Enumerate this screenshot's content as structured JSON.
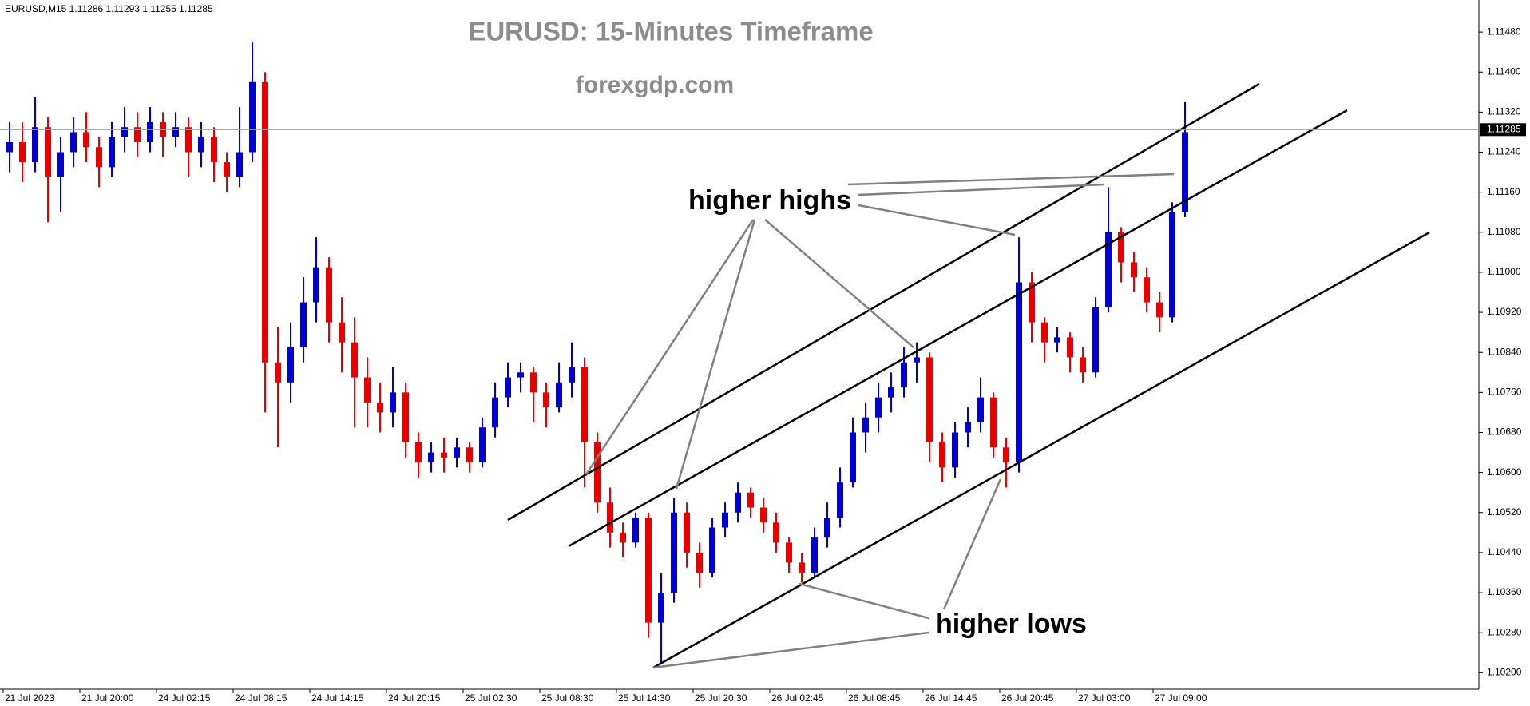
{
  "chart_data": {
    "type": "candlestick",
    "title": "EURUSD: 15-Minutes Timeframe",
    "subtitle": "forexgdp.com",
    "header": "EURUSD,M15  1.11286 1.11293 1.11255 1.11285",
    "annotations": [
      "higher highs",
      "higher lows"
    ],
    "up_color": "#0000cc",
    "down_color": "#e60000",
    "current_price": {
      "value": 1.11285,
      "label": "1.11285"
    },
    "ylim": [
      1.10167,
      1.11544
    ],
    "yticks": [
      {
        "value": 1.102,
        "label": "1.10200"
      },
      {
        "value": 1.1028,
        "label": "1.10280"
      },
      {
        "value": 1.1036,
        "label": "1.10360"
      },
      {
        "value": 1.1044,
        "label": "1.10440"
      },
      {
        "value": 1.1052,
        "label": "1.10520"
      },
      {
        "value": 1.106,
        "label": "1.10600"
      },
      {
        "value": 1.1068,
        "label": "1.10680"
      },
      {
        "value": 1.1076,
        "label": "1.10760"
      },
      {
        "value": 1.1084,
        "label": "1.10840"
      },
      {
        "value": 1.1092,
        "label": "1.10920"
      },
      {
        "value": 1.11,
        "label": "1.11000"
      },
      {
        "value": 1.1108,
        "label": "1.11080"
      },
      {
        "value": 1.1116,
        "label": "1.11160"
      },
      {
        "value": 1.1124,
        "label": "1.11240"
      },
      {
        "value": 1.1132,
        "label": "1.11320"
      },
      {
        "value": 1.114,
        "label": "1.11400"
      },
      {
        "value": 1.1148,
        "label": "1.11480"
      }
    ],
    "xticks": [
      {
        "value": 0,
        "label": "21 Jul 2023"
      },
      {
        "value": 6,
        "label": "21 Jul 20:00"
      },
      {
        "value": 12,
        "label": "24 Jul 02:15"
      },
      {
        "value": 18,
        "label": "24 Jul 08:15"
      },
      {
        "value": 24,
        "label": "24 Jul 14:15"
      },
      {
        "value": 30,
        "label": "24 Jul 20:15"
      },
      {
        "value": 36,
        "label": "25 Jul 02:30"
      },
      {
        "value": 42,
        "label": "25 Jul 08:30"
      },
      {
        "value": 48,
        "label": "25 Jul 14:30"
      },
      {
        "value": 54,
        "label": "25 Jul 20:30"
      },
      {
        "value": 60,
        "label": "26 Jul 02:45"
      },
      {
        "value": 66,
        "label": "26 Jul 08:45"
      },
      {
        "value": 72,
        "label": "26 Jul 14:45"
      },
      {
        "value": 78,
        "label": "26 Jul 20:45"
      },
      {
        "value": 84,
        "label": "27 Jul 03:00"
      },
      {
        "value": 90,
        "label": "27 Jul 09:00"
      }
    ],
    "ohlc": [
      [
        1.1124,
        1.113,
        1.112,
        1.1126
      ],
      [
        1.1126,
        1.113,
        1.1118,
        1.1122
      ],
      [
        1.1122,
        1.1135,
        1.112,
        1.1129
      ],
      [
        1.1129,
        1.1131,
        1.111,
        1.1119
      ],
      [
        1.1119,
        1.1127,
        1.1112,
        1.1124
      ],
      [
        1.1124,
        1.1131,
        1.1121,
        1.1128
      ],
      [
        1.1128,
        1.1132,
        1.1122,
        1.1125
      ],
      [
        1.1125,
        1.1127,
        1.1117,
        1.1121
      ],
      [
        1.1121,
        1.113,
        1.1119,
        1.1127
      ],
      [
        1.1127,
        1.1133,
        1.1124,
        1.1129
      ],
      [
        1.1129,
        1.1132,
        1.1123,
        1.1126
      ],
      [
        1.1126,
        1.1133,
        1.1124,
        1.113
      ],
      [
        1.113,
        1.1132,
        1.1123,
        1.1127
      ],
      [
        1.1127,
        1.1132,
        1.1125,
        1.1129
      ],
      [
        1.1129,
        1.1131,
        1.1119,
        1.1124
      ],
      [
        1.1124,
        1.113,
        1.1121,
        1.1127
      ],
      [
        1.1127,
        1.1129,
        1.1118,
        1.1122
      ],
      [
        1.1122,
        1.1124,
        1.1116,
        1.1119
      ],
      [
        1.1119,
        1.1133,
        1.1117,
        1.1124
      ],
      [
        1.1124,
        1.1146,
        1.1122,
        1.1138
      ],
      [
        1.1138,
        1.114,
        1.1072,
        1.1082
      ],
      [
        1.1082,
        1.1089,
        1.1065,
        1.1078
      ],
      [
        1.1078,
        1.109,
        1.1074,
        1.1085
      ],
      [
        1.1085,
        1.1099,
        1.1082,
        1.1094
      ],
      [
        1.1094,
        1.1107,
        1.109,
        1.1101
      ],
      [
        1.1101,
        1.1103,
        1.1086,
        1.109
      ],
      [
        1.109,
        1.1095,
        1.108,
        1.1086
      ],
      [
        1.1086,
        1.1091,
        1.1069,
        1.1079
      ],
      [
        1.1079,
        1.1083,
        1.1069,
        1.1074
      ],
      [
        1.1074,
        1.1078,
        1.1068,
        1.1072
      ],
      [
        1.1072,
        1.1081,
        1.1069,
        1.1076
      ],
      [
        1.1076,
        1.1078,
        1.1063,
        1.1066
      ],
      [
        1.1066,
        1.1068,
        1.1059,
        1.1062
      ],
      [
        1.1062,
        1.1066,
        1.106,
        1.1064
      ],
      [
        1.1064,
        1.1067,
        1.106,
        1.1063
      ],
      [
        1.1063,
        1.1067,
        1.1061,
        1.1065
      ],
      [
        1.1065,
        1.1066,
        1.106,
        1.1062
      ],
      [
        1.1062,
        1.1071,
        1.1061,
        1.1069
      ],
      [
        1.1069,
        1.1078,
        1.1067,
        1.1075
      ],
      [
        1.1075,
        1.1082,
        1.1073,
        1.1079
      ],
      [
        1.1079,
        1.1082,
        1.1076,
        1.108
      ],
      [
        1.108,
        1.1081,
        1.107,
        1.1076
      ],
      [
        1.1076,
        1.1078,
        1.1069,
        1.1073
      ],
      [
        1.1073,
        1.1082,
        1.1072,
        1.1078
      ],
      [
        1.1078,
        1.1086,
        1.1075,
        1.1081
      ],
      [
        1.1081,
        1.1083,
        1.1057,
        1.1066
      ],
      [
        1.1066,
        1.1068,
        1.1052,
        1.1054
      ],
      [
        1.1054,
        1.1057,
        1.1045,
        1.1048
      ],
      [
        1.1048,
        1.105,
        1.1043,
        1.1046
      ],
      [
        1.1046,
        1.1052,
        1.1045,
        1.1051
      ],
      [
        1.1051,
        1.1052,
        1.1027,
        1.103
      ],
      [
        1.103,
        1.104,
        1.1022,
        1.1036
      ],
      [
        1.1036,
        1.1055,
        1.1034,
        1.1052
      ],
      [
        1.1052,
        1.1054,
        1.1041,
        1.1044
      ],
      [
        1.1044,
        1.1046,
        1.1037,
        1.104
      ],
      [
        1.104,
        1.1051,
        1.1039,
        1.1049
      ],
      [
        1.1049,
        1.1054,
        1.1047,
        1.1052
      ],
      [
        1.1052,
        1.1058,
        1.105,
        1.1056
      ],
      [
        1.1056,
        1.1057,
        1.1051,
        1.1053
      ],
      [
        1.1053,
        1.1055,
        1.1048,
        1.105
      ],
      [
        1.105,
        1.1052,
        1.1044,
        1.1046
      ],
      [
        1.1046,
        1.1047,
        1.104,
        1.1042
      ],
      [
        1.1042,
        1.1044,
        1.1038,
        1.104
      ],
      [
        1.104,
        1.1049,
        1.1039,
        1.1047
      ],
      [
        1.1047,
        1.1054,
        1.1045,
        1.1051
      ],
      [
        1.1051,
        1.1061,
        1.1049,
        1.1058
      ],
      [
        1.1058,
        1.1071,
        1.1057,
        1.1068
      ],
      [
        1.1068,
        1.1074,
        1.1064,
        1.1071
      ],
      [
        1.1071,
        1.1078,
        1.1068,
        1.1075
      ],
      [
        1.1075,
        1.108,
        1.1072,
        1.1077
      ],
      [
        1.1077,
        1.1085,
        1.1075,
        1.1082
      ],
      [
        1.1082,
        1.1086,
        1.1078,
        1.1083
      ],
      [
        1.1083,
        1.1084,
        1.1062,
        1.1066
      ],
      [
        1.1066,
        1.1068,
        1.1058,
        1.1061
      ],
      [
        1.1061,
        1.107,
        1.1059,
        1.1068
      ],
      [
        1.1068,
        1.1073,
        1.1065,
        1.107
      ],
      [
        1.107,
        1.1079,
        1.1068,
        1.1075
      ],
      [
        1.1075,
        1.1076,
        1.1063,
        1.1065
      ],
      [
        1.1065,
        1.1067,
        1.1057,
        1.1062
      ],
      [
        1.1062,
        1.1107,
        1.106,
        1.1098
      ],
      [
        1.1098,
        1.11,
        1.1086,
        1.109
      ],
      [
        1.109,
        1.1091,
        1.1082,
        1.1086
      ],
      [
        1.1086,
        1.1089,
        1.1084,
        1.1087
      ],
      [
        1.1087,
        1.1088,
        1.108,
        1.1083
      ],
      [
        1.1083,
        1.1085,
        1.1078,
        1.108
      ],
      [
        1.108,
        1.1095,
        1.1079,
        1.1093
      ],
      [
        1.1093,
        1.1117,
        1.1092,
        1.1108
      ],
      [
        1.1108,
        1.1109,
        1.1098,
        1.1102
      ],
      [
        1.1102,
        1.1104,
        1.1096,
        1.1099
      ],
      [
        1.1099,
        1.1101,
        1.1092,
        1.1094
      ],
      [
        1.1094,
        1.1096,
        1.1088,
        1.1091
      ],
      [
        1.1091,
        1.1114,
        1.109,
        1.1112
      ],
      [
        1.1112,
        1.1134,
        1.1111,
        1.1128
      ]
    ]
  }
}
